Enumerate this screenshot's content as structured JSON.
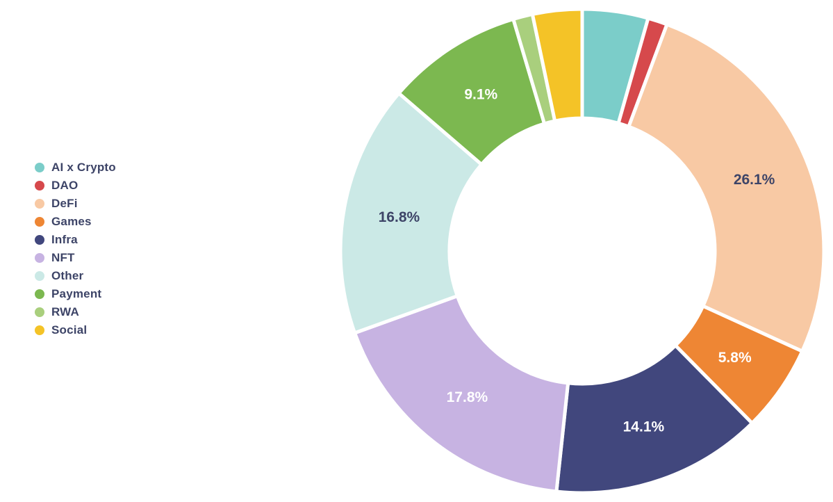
{
  "chart_data": {
    "type": "pie",
    "style": "donut",
    "title": "",
    "legend_position": "left",
    "direction": "clockwise",
    "start_angle_deg": 0,
    "slices": [
      {
        "label": "AI x Crypto",
        "value": 4.4,
        "color": "#7BCDC9",
        "show_label": false,
        "label_text": "",
        "label_color": "#3D4467"
      },
      {
        "label": "DAO",
        "value": 1.3,
        "color": "#D6494C",
        "show_label": false,
        "label_text": "",
        "label_color": "#FFFFFF"
      },
      {
        "label": "DeFi",
        "value": 26.1,
        "color": "#F8C9A4",
        "show_label": true,
        "label_text": "26.1%",
        "label_color": "#3D4467"
      },
      {
        "label": "Games",
        "value": 5.8,
        "color": "#EE8634",
        "show_label": true,
        "label_text": "5.8%",
        "label_color": "#FFFFFF"
      },
      {
        "label": "Infra",
        "value": 14.1,
        "color": "#41477D",
        "show_label": true,
        "label_text": "14.1%",
        "label_color": "#FFFFFF"
      },
      {
        "label": "NFT",
        "value": 17.8,
        "color": "#C7B3E2",
        "show_label": true,
        "label_text": "17.8%",
        "label_color": "#FFFFFF"
      },
      {
        "label": "Other",
        "value": 16.8,
        "color": "#CBE9E6",
        "show_label": true,
        "label_text": "16.8%",
        "label_color": "#3D4467"
      },
      {
        "label": "Payment",
        "value": 9.1,
        "color": "#7CB850",
        "show_label": true,
        "label_text": "9.1%",
        "label_color": "#FFFFFF"
      },
      {
        "label": "RWA",
        "value": 1.3,
        "color": "#A9CF7D",
        "show_label": false,
        "label_text": "",
        "label_color": "#3D4467"
      },
      {
        "label": "Social",
        "value": 3.3,
        "color": "#F4C327",
        "show_label": false,
        "label_text": "",
        "label_color": "#3D4467"
      }
    ]
  },
  "legend": {
    "text_color": "#3D4467"
  },
  "canvas": {
    "background": "#FFFFFF",
    "separator_color": "#FFFFFF"
  }
}
